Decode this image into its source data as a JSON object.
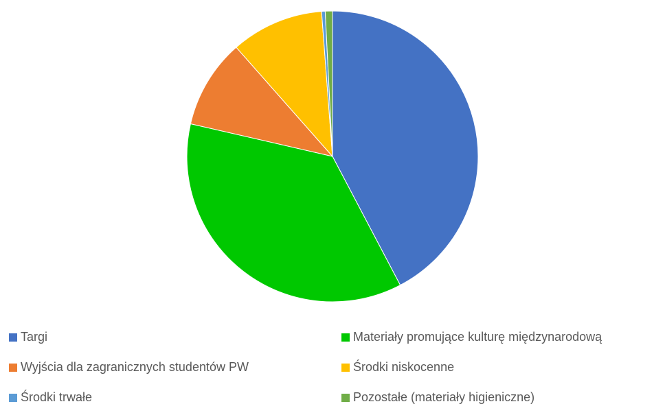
{
  "chart_data": {
    "type": "pie",
    "categories": [
      "Targi",
      "Materiały promujące kulturę międzynarodową",
      "Wyjścia dla zagranicznych studentów PW",
      "Środki niskocenne",
      "Środki trwałe",
      "Pozostałe (materiały higieniczne)"
    ],
    "values": [
      42.3,
      36.3,
      9.9,
      10.3,
      0.4,
      0.8
    ],
    "colors": [
      "#4472c4",
      "#00c800",
      "#ed7d31",
      "#ffc000",
      "#5b9bd5",
      "#70ad47"
    ],
    "legend": "bottom"
  }
}
